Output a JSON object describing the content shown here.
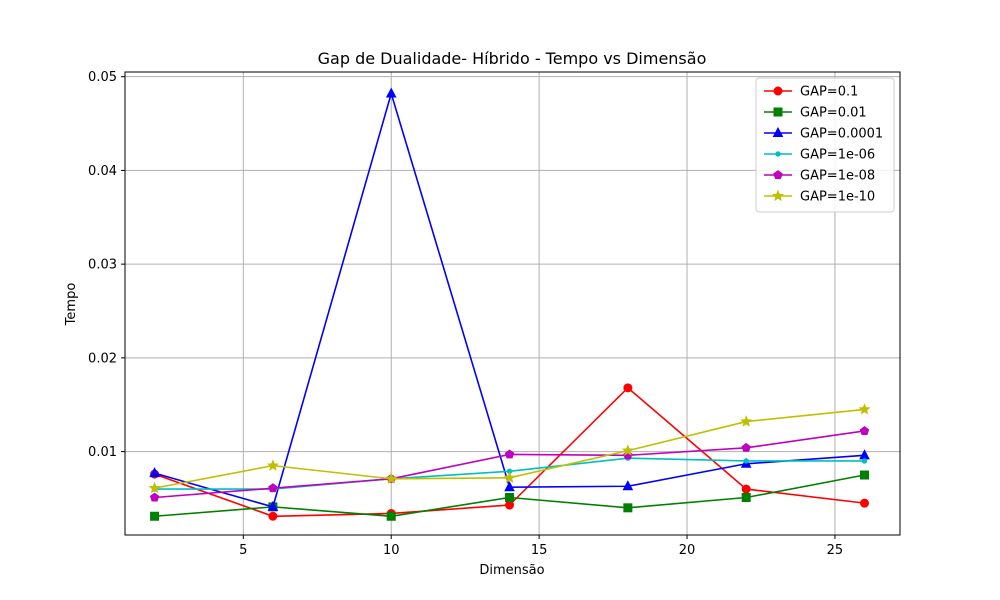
{
  "chart_data": {
    "type": "line",
    "title": "Gap de Dualidade- Híbrido - Tempo vs Dimensão",
    "xlabel": "Dimensão",
    "ylabel": "Tempo",
    "x": [
      2,
      6,
      10,
      14,
      18,
      22,
      26
    ],
    "xlim": [
      1,
      27.2
    ],
    "ylim": [
      0.0011,
      0.0505
    ],
    "xticks": [
      5,
      10,
      15,
      20,
      25
    ],
    "xtick_labels": [
      "5",
      "10",
      "15",
      "20",
      "25"
    ],
    "yticks": [
      0.01,
      0.02,
      0.03,
      0.04,
      0.05
    ],
    "ytick_labels": [
      "0.01",
      "0.02",
      "0.03",
      "0.04",
      "0.05"
    ],
    "grid": true,
    "legend_position": "top-right",
    "series": [
      {
        "name": "GAP=0.1",
        "color": "#ff0000",
        "marker": "circle",
        "values": [
          0.0076,
          0.0031,
          0.0034,
          0.0043,
          0.0168,
          0.006,
          0.0045
        ]
      },
      {
        "name": "GAP=0.01",
        "color": "#008000",
        "marker": "square",
        "values": [
          0.0031,
          0.0041,
          0.0031,
          0.0051,
          0.004,
          0.0051,
          0.0075
        ]
      },
      {
        "name": "GAP=0.0001",
        "color": "#0000ff",
        "marker": "triangle",
        "values": [
          0.0077,
          0.0041,
          0.0482,
          0.0062,
          0.0063,
          0.0087,
          0.0096
        ]
      },
      {
        "name": "GAP=1e-06",
        "color": "#00bfbf",
        "marker": "point",
        "values": [
          0.006,
          0.006,
          0.0071,
          0.0079,
          0.0093,
          0.009,
          0.009
        ]
      },
      {
        "name": "GAP=1e-08",
        "color": "#bf00bf",
        "marker": "pentagon",
        "values": [
          0.0051,
          0.0061,
          0.0071,
          0.0097,
          0.0096,
          0.0104,
          0.0122
        ]
      },
      {
        "name": "GAP=1e-10",
        "color": "#bfbf00",
        "marker": "star",
        "values": [
          0.0061,
          0.0085,
          0.0071,
          0.0072,
          0.0101,
          0.0132,
          0.0145
        ]
      }
    ]
  }
}
